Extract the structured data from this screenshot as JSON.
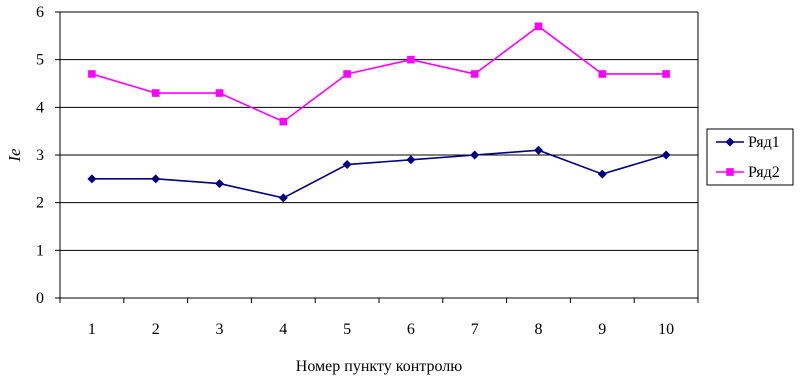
{
  "chart_data": {
    "type": "line",
    "title": "",
    "xlabel": "Номер пункту контролю",
    "ylabel": "Ie",
    "categories": [
      "1",
      "2",
      "3",
      "4",
      "5",
      "6",
      "7",
      "8",
      "9",
      "10"
    ],
    "ylim": [
      0,
      6
    ],
    "yticks": [
      "0",
      "1",
      "2",
      "3",
      "4",
      "5",
      "6"
    ],
    "grid": "horizontal",
    "legend_position": "right",
    "series": [
      {
        "name": "Ряд1",
        "color": "#000080",
        "marker": "diamond",
        "values": [
          2.5,
          2.5,
          2.4,
          2.1,
          2.8,
          2.9,
          3.0,
          3.1,
          2.6,
          3.0
        ]
      },
      {
        "name": "Ряд2",
        "color": "#ff00ff",
        "marker": "square",
        "values": [
          4.7,
          4.3,
          4.3,
          3.7,
          4.7,
          5.0,
          4.7,
          5.7,
          4.7,
          4.7
        ]
      }
    ]
  }
}
